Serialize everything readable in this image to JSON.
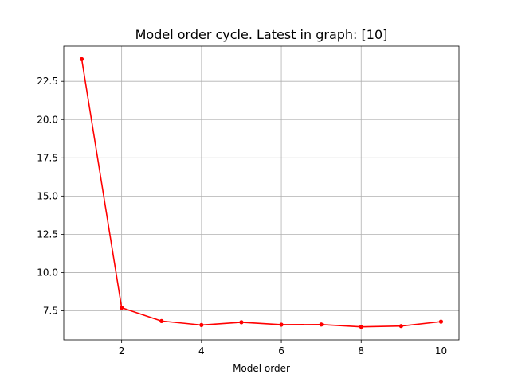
{
  "chart_data": {
    "type": "line",
    "title": "Model order cycle. Latest in graph: [10]",
    "xlabel": "Model order",
    "ylabel": "",
    "x": [
      1,
      2,
      3,
      4,
      5,
      6,
      7,
      8,
      9,
      10
    ],
    "series": [
      {
        "values": [
          23.95,
          7.7,
          6.83,
          6.57,
          6.75,
          6.59,
          6.6,
          6.45,
          6.5,
          6.79
        ],
        "color": "#ff0000",
        "marker": "circle"
      }
    ],
    "xlim": [
      0.55,
      10.45
    ],
    "ylim": [
      5.6,
      24.8
    ],
    "xticks": [
      2,
      4,
      6,
      8,
      10
    ],
    "xtick_labels": [
      "2",
      "4",
      "6",
      "8",
      "10"
    ],
    "yticks": [
      7.5,
      10.0,
      12.5,
      15.0,
      17.5,
      20.0,
      22.5
    ],
    "ytick_labels": [
      "7.5",
      "10.0",
      "12.5",
      "15.0",
      "17.5",
      "20.0",
      "22.5"
    ],
    "grid": true
  }
}
